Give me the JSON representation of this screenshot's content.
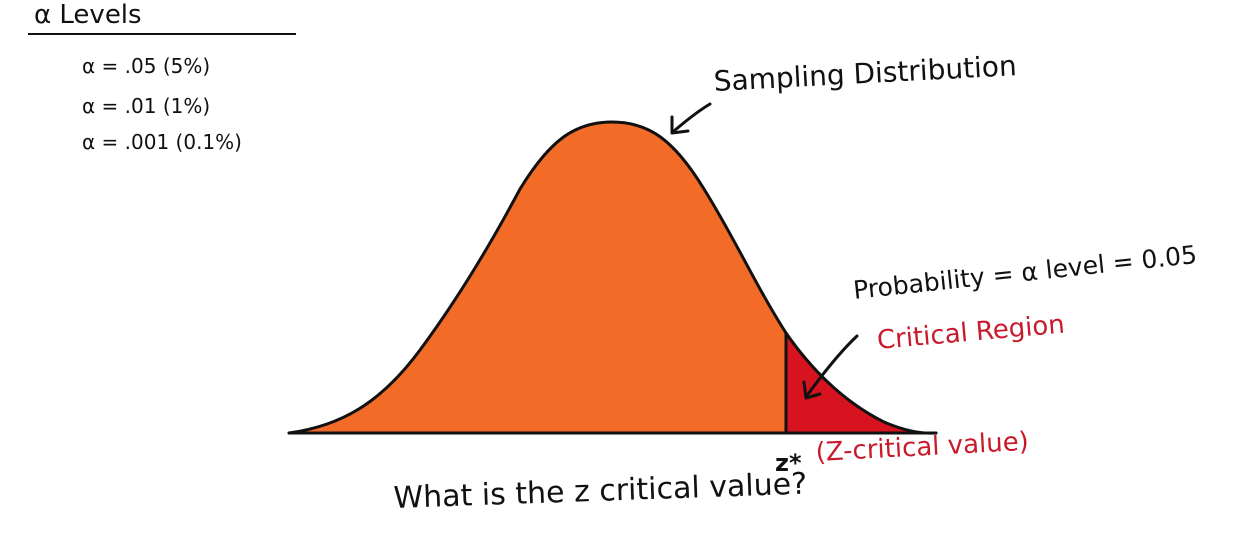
{
  "alpha_levels": {
    "title": "α Levels",
    "items": [
      "α = .05 (5%)",
      "α = .01 (1%)",
      "α = .001 (0.1%)"
    ]
  },
  "diagram": {
    "curve_label": "Sampling Distribution",
    "probability_label": "Probability = α level = 0.05",
    "critical_region_label": "Critical Region",
    "z_star_label": "z*",
    "z_critical_label": "(Z-critical value)",
    "question": "What is the z critical value?"
  },
  "colors": {
    "curve_fill": "#f26b27",
    "critical_fill": "#d7131f",
    "ink": "#111111",
    "accent_text": "#c81a2a"
  }
}
